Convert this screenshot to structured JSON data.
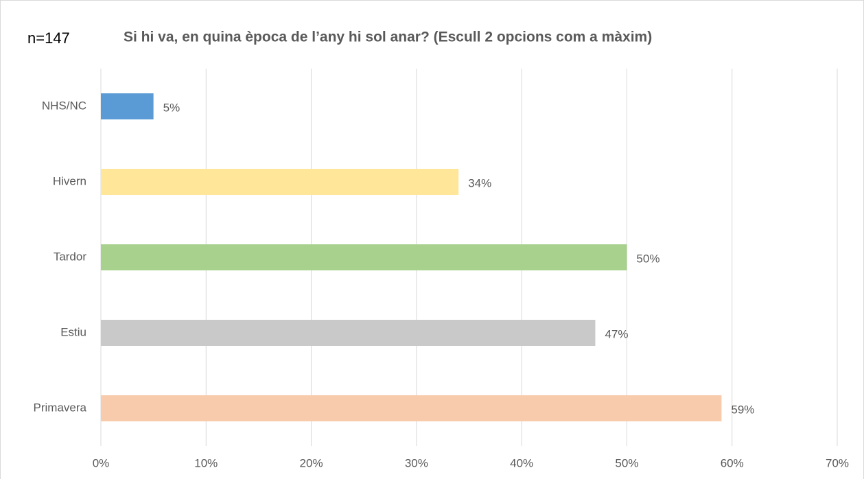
{
  "chart_data": {
    "type": "bar",
    "orientation": "horizontal",
    "annotation": "n=147",
    "title": "Si hi va, en quina època de l’any hi sol anar? (Escull 2 opcions com a màxim)",
    "categories": [
      "NHS/NC",
      "Hivern",
      "Tardor",
      "Estiu",
      "Primavera"
    ],
    "values": [
      5,
      34,
      50,
      47,
      59
    ],
    "value_labels": [
      "5%",
      "34%",
      "50%",
      "47%",
      "59%"
    ],
    "colors": [
      "#5b9bd5",
      "#ffe699",
      "#a9d18e",
      "#c9c9c9",
      "#f8cbad"
    ],
    "xlim": [
      0,
      70
    ],
    "xticks": [
      {
        "value": 0,
        "label": "0%"
      },
      {
        "value": 10,
        "label": "10%"
      },
      {
        "value": 20,
        "label": "20%"
      },
      {
        "value": 30,
        "label": "30%"
      },
      {
        "value": 40,
        "label": "40%"
      },
      {
        "value": 50,
        "label": "50%"
      },
      {
        "value": 60,
        "label": "60%"
      },
      {
        "value": 70,
        "label": "70%"
      }
    ],
    "grid": true
  }
}
